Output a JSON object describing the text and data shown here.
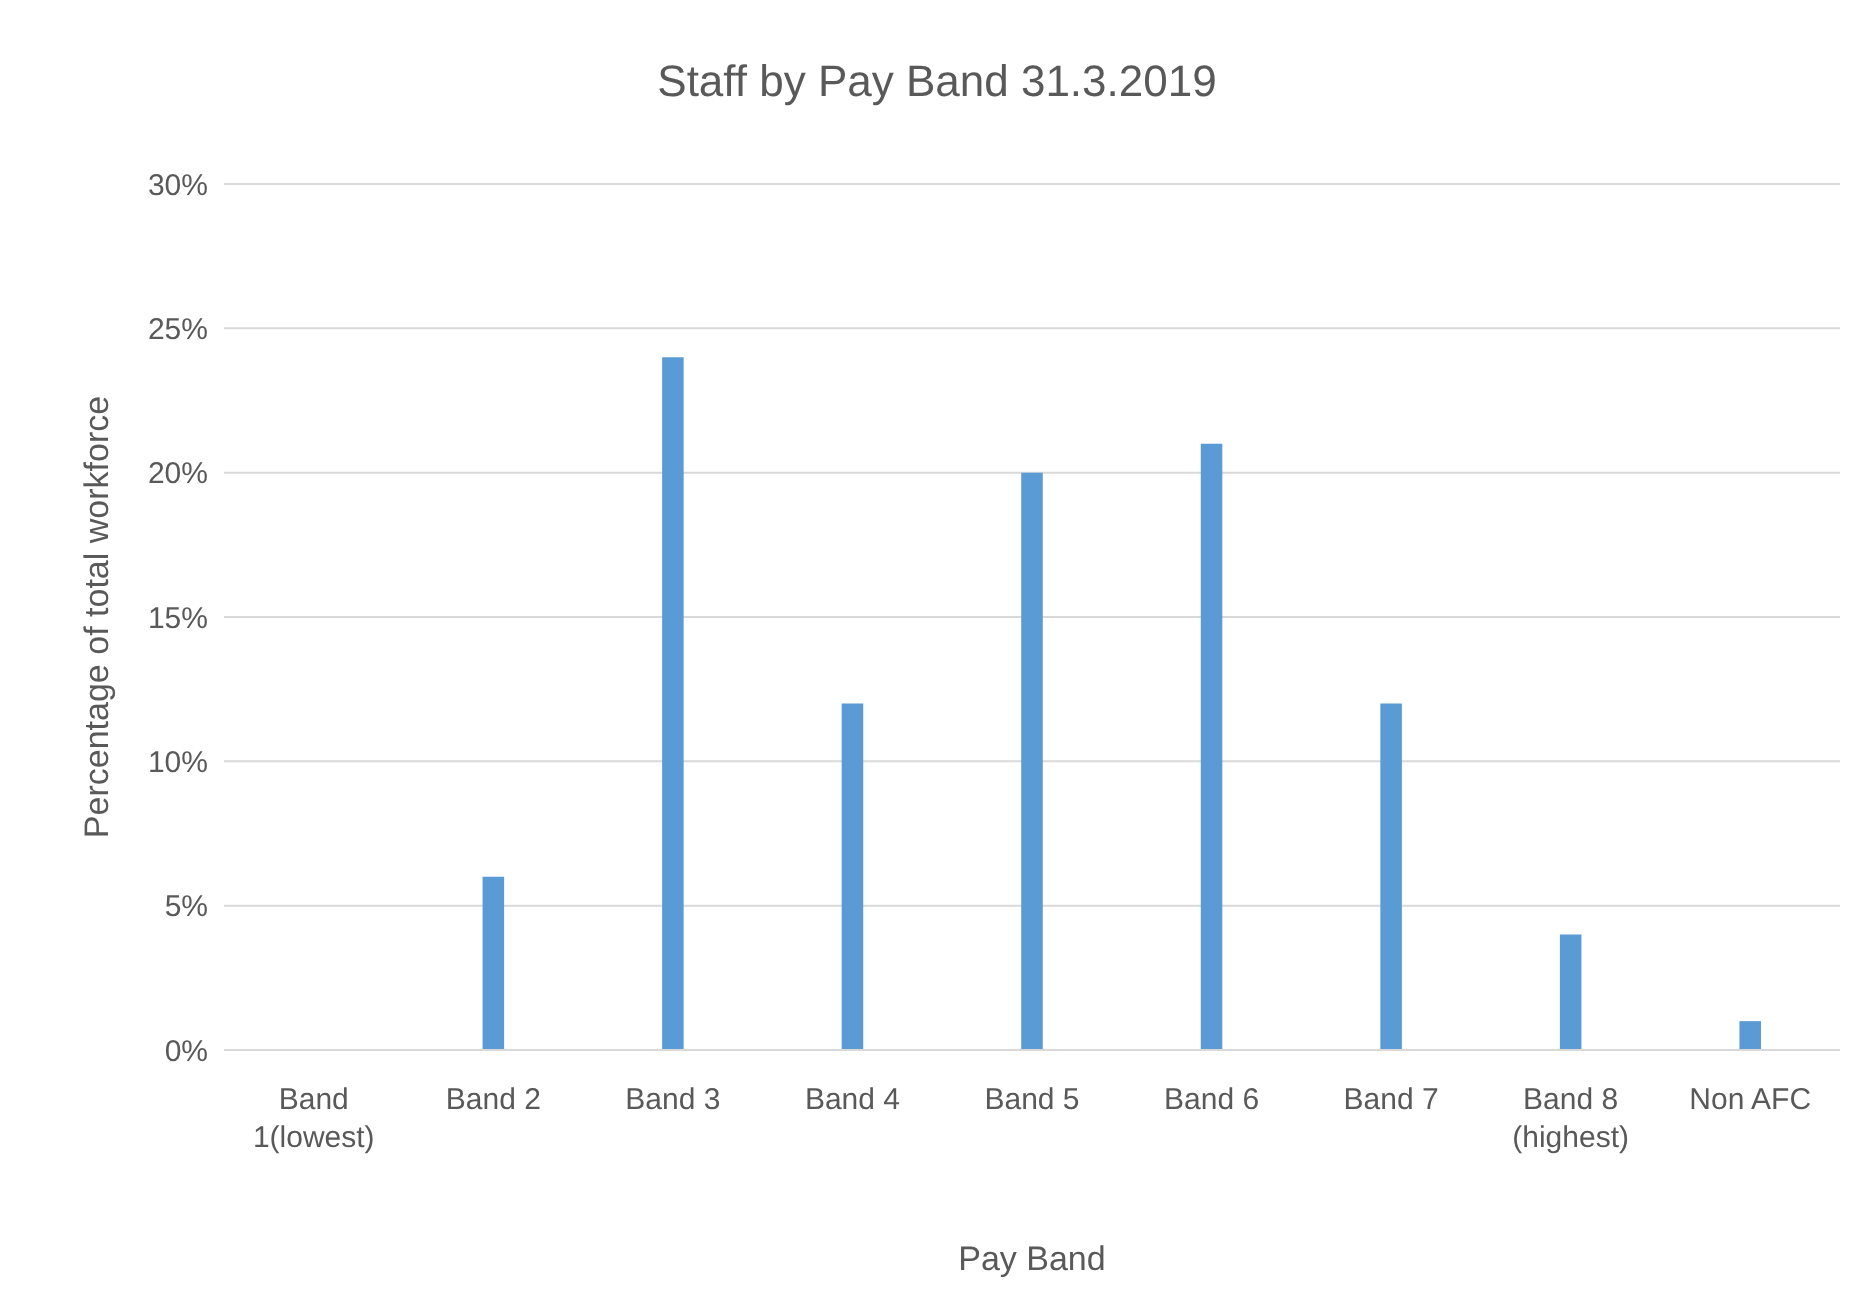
{
  "chart_data": {
    "type": "bar",
    "title": "Staff by Pay Band 31.3.2019",
    "xlabel": "Pay Band",
    "ylabel": "Percentage of total workforce",
    "categories": [
      "Band 1(lowest)",
      "Band 2",
      "Band 3",
      "Band 4",
      "Band 5",
      "Band 6",
      "Band 7",
      "Band 8 (highest)",
      "Non AFC"
    ],
    "values": [
      0,
      6,
      24,
      12,
      20,
      21,
      12,
      4,
      1
    ],
    "color": "#5b9bd5",
    "ylim": [
      0,
      30
    ],
    "yticks": [
      {
        "value": 0,
        "label": "0%"
      },
      {
        "value": 5,
        "label": "5%"
      },
      {
        "value": 10,
        "label": "10%"
      },
      {
        "value": 15,
        "label": "15%"
      },
      {
        "value": 20,
        "label": "20%"
      },
      {
        "value": 25,
        "label": "25%"
      },
      {
        "value": 30,
        "label": "30%"
      }
    ],
    "grid": "y",
    "legend": false
  }
}
